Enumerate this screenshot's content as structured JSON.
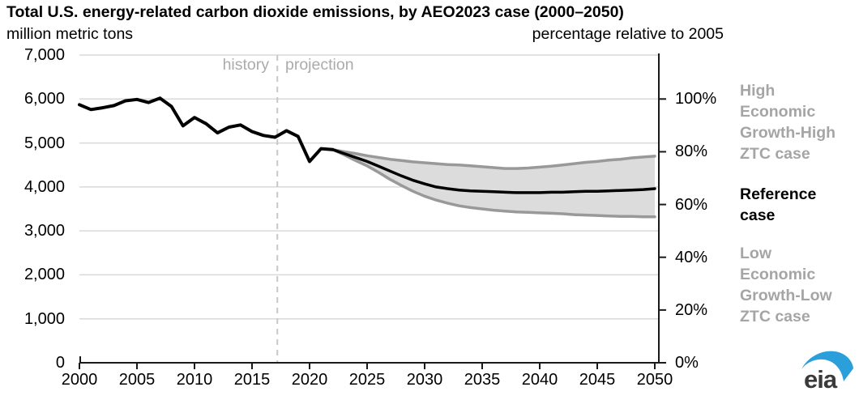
{
  "header": {
    "title": "Total U.S. energy-related carbon dioxide emissions, by AEO2023 case (2000–2050)",
    "left_unit": "million metric tons",
    "right_unit": "percentage relative to 2005"
  },
  "annotations": {
    "history_label": "history",
    "projection_label": "projection",
    "divider_year": 2017.2
  },
  "legend": {
    "high_label": "High Economic Growth-High ZTC case",
    "reference_label": "Reference case",
    "low_label": "Low Economic Growth-Low ZTC case",
    "gray_color": "#a5a5a5",
    "black_color": "#000000"
  },
  "logo": {
    "text": "eia",
    "accent_color": "#2b9fd9",
    "text_color": "#3b3b3b"
  },
  "colors": {
    "gridline": "#d9d9d9",
    "axis": "#1a1a1a",
    "divider": "#c7c7c7",
    "band_fill": "#dcdcdc",
    "band_line": "#999999",
    "reference_line": "#000000"
  },
  "chart_data": {
    "type": "line",
    "title": "Total U.S. energy-related carbon dioxide emissions, by AEO2023 case (2000–2050)",
    "xlabel": "",
    "ylabel_left": "million metric tons",
    "ylabel_right": "percentage relative to 2005",
    "xlim": [
      2000,
      2050
    ],
    "ylim_left": [
      0,
      7000
    ],
    "ylim_right_percent": [
      0,
      100
    ],
    "right_axis_note": "100% corresponds to 6,000 million metric tons (2005 level)",
    "grid": "horizontal only",
    "legend_position": "right side, stacked text labels",
    "x_ticks": [
      2000,
      2005,
      2010,
      2015,
      2020,
      2025,
      2030,
      2035,
      2040,
      2045,
      2050
    ],
    "y_left_ticks": [
      {
        "value": 0,
        "label": "0"
      },
      {
        "value": 1000,
        "label": "1,000"
      },
      {
        "value": 2000,
        "label": "2,000"
      },
      {
        "value": 3000,
        "label": "3,000"
      },
      {
        "value": 4000,
        "label": "4,000"
      },
      {
        "value": 5000,
        "label": "5,000"
      },
      {
        "value": 6000,
        "label": "6,000"
      },
      {
        "value": 7000,
        "label": "7,000"
      }
    ],
    "y_right_ticks": [
      {
        "percent": 0,
        "label": "0%"
      },
      {
        "percent": 20,
        "label": "20%"
      },
      {
        "percent": 40,
        "label": "40%"
      },
      {
        "percent": 60,
        "label": "60%"
      },
      {
        "percent": 80,
        "label": "80%"
      },
      {
        "percent": 100,
        "label": "100%"
      }
    ],
    "divider_year": 2017.2,
    "band": {
      "between": [
        "High Economic Growth-High ZTC case",
        "Low Economic Growth-Low ZTC case"
      ]
    },
    "series": [
      {
        "name": "History",
        "start_year": 2000,
        "style": "solid black, thick",
        "values": [
          5870,
          5760,
          5800,
          5850,
          5960,
          5990,
          5920,
          6020,
          5830,
          5390,
          5580,
          5440,
          5230,
          5360,
          5410,
          5260,
          5170,
          5130,
          5280,
          5150,
          4580,
          4870,
          4850
        ]
      },
      {
        "name": "Reference case",
        "start_year": 2022,
        "style": "solid black",
        "values": [
          4850,
          4760,
          4670,
          4580,
          4470,
          4360,
          4250,
          4150,
          4070,
          4000,
          3960,
          3930,
          3910,
          3900,
          3890,
          3880,
          3870,
          3870,
          3870,
          3880,
          3880,
          3890,
          3900,
          3900,
          3910,
          3920,
          3930,
          3940,
          3960
        ]
      },
      {
        "name": "High Economic Growth-High ZTC case",
        "start_year": 2022,
        "style": "solid gray, upper band edge",
        "values": [
          4850,
          4800,
          4760,
          4710,
          4670,
          4630,
          4600,
          4570,
          4550,
          4530,
          4510,
          4500,
          4480,
          4460,
          4440,
          4420,
          4420,
          4430,
          4450,
          4470,
          4500,
          4530,
          4560,
          4580,
          4610,
          4630,
          4660,
          4680,
          4700
        ]
      },
      {
        "name": "Low Economic Growth-Low ZTC case",
        "start_year": 2022,
        "style": "solid gray, lower band edge",
        "values": [
          4850,
          4730,
          4600,
          4480,
          4330,
          4170,
          4030,
          3900,
          3790,
          3700,
          3630,
          3570,
          3530,
          3500,
          3470,
          3450,
          3430,
          3420,
          3410,
          3400,
          3390,
          3370,
          3360,
          3350,
          3340,
          3330,
          3330,
          3320,
          3320
        ]
      }
    ]
  }
}
